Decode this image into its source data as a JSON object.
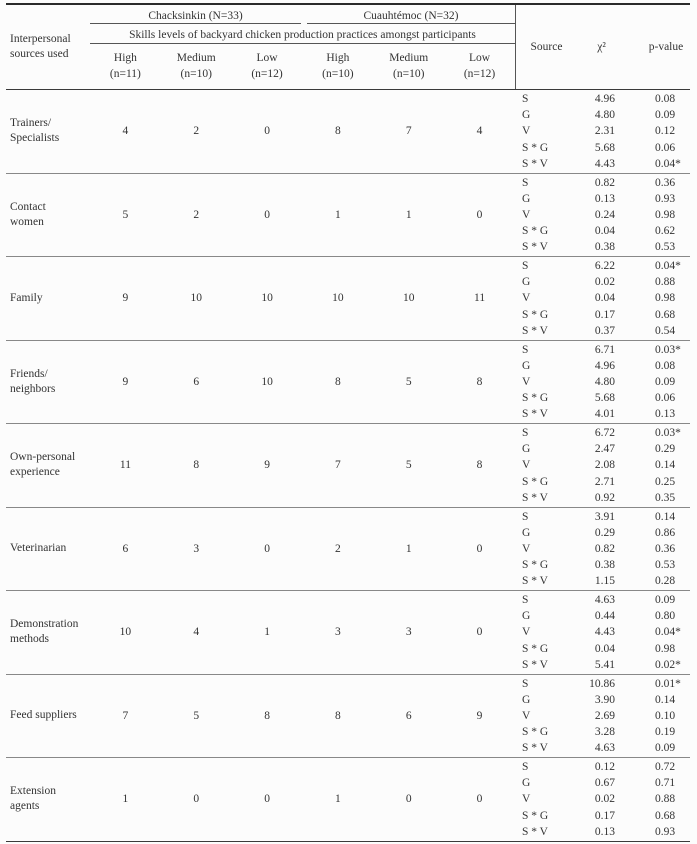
{
  "table": {
    "header": {
      "row_label": "Interpersonal sources used",
      "group1": "Chacksinkin (N=33)",
      "group2": "Cuauhtémoc (N=32)",
      "span_label": "Skills levels of backyard chicken production practices amongst participants",
      "level_cols": [
        {
          "level": "High",
          "n": "(n=11)"
        },
        {
          "level": "Medium",
          "n": "(n=10)"
        },
        {
          "level": "Low",
          "n": "(n=12)"
        },
        {
          "level": "High",
          "n": "(n=10)"
        },
        {
          "level": "Medium",
          "n": "(n=10)"
        },
        {
          "level": "Low",
          "n": "(n=12)"
        }
      ],
      "source": "Source",
      "chi2": "χ²",
      "pvalue": "p-value"
    },
    "rows": [
      {
        "label_lines": [
          "Trainers/",
          "Specialists"
        ],
        "counts": [
          "4",
          "2",
          "0",
          "8",
          "7",
          "4"
        ],
        "stats": [
          {
            "source": "S",
            "chi2": "4.96",
            "p": "0.08"
          },
          {
            "source": "G",
            "chi2": "4.80",
            "p": "0.09"
          },
          {
            "source": "V",
            "chi2": "2.31",
            "p": "0.12"
          },
          {
            "source": "S * G",
            "chi2": "5.68",
            "p": "0.06"
          },
          {
            "source": "S * V",
            "chi2": "4.43",
            "p": "0.04*"
          }
        ]
      },
      {
        "label_lines": [
          "Contact",
          "women"
        ],
        "counts": [
          "5",
          "2",
          "0",
          "1",
          "1",
          "0"
        ],
        "stats": [
          {
            "source": "S",
            "chi2": "0.82",
            "p": "0.36"
          },
          {
            "source": "G",
            "chi2": "0.13",
            "p": "0.93"
          },
          {
            "source": "V",
            "chi2": "0.24",
            "p": "0.98"
          },
          {
            "source": "S * G",
            "chi2": "0.04",
            "p": "0.62"
          },
          {
            "source": "S * V",
            "chi2": "0.38",
            "p": "0.53"
          }
        ]
      },
      {
        "label_lines": [
          "Family"
        ],
        "counts": [
          "9",
          "10",
          "10",
          "10",
          "10",
          "11"
        ],
        "stats": [
          {
            "source": "S",
            "chi2": "6.22",
            "p": "0.04*"
          },
          {
            "source": "G",
            "chi2": "0.02",
            "p": "0.88"
          },
          {
            "source": "V",
            "chi2": "0.04",
            "p": "0.98"
          },
          {
            "source": "S * G",
            "chi2": "0.17",
            "p": "0.68"
          },
          {
            "source": "S * V",
            "chi2": "0.37",
            "p": "0.54"
          }
        ]
      },
      {
        "label_lines": [
          "Friends/",
          "neighbors"
        ],
        "counts": [
          "9",
          "6",
          "10",
          "8",
          "5",
          "8"
        ],
        "stats": [
          {
            "source": "S",
            "chi2": "6.71",
            "p": "0.03*"
          },
          {
            "source": "G",
            "chi2": "4.96",
            "p": "0.08"
          },
          {
            "source": "V",
            "chi2": "4.80",
            "p": "0.09"
          },
          {
            "source": "S * G",
            "chi2": "5.68",
            "p": "0.06"
          },
          {
            "source": "S * V",
            "chi2": "4.01",
            "p": "0.13"
          }
        ]
      },
      {
        "label_lines": [
          "Own-personal",
          "experience"
        ],
        "counts": [
          "11",
          "8",
          "9",
          "7",
          "5",
          "8"
        ],
        "stats": [
          {
            "source": "S",
            "chi2": "6.72",
            "p": "0.03*"
          },
          {
            "source": "G",
            "chi2": "2.47",
            "p": "0.29"
          },
          {
            "source": "V",
            "chi2": "2.08",
            "p": "0.14"
          },
          {
            "source": "S * G",
            "chi2": "2.71",
            "p": "0.25"
          },
          {
            "source": "S * V",
            "chi2": "0.92",
            "p": "0.35"
          }
        ]
      },
      {
        "label_lines": [
          "Veterinarian"
        ],
        "counts": [
          "6",
          "3",
          "0",
          "2",
          "1",
          "0"
        ],
        "stats": [
          {
            "source": "S",
            "chi2": "3.91",
            "p": "0.14"
          },
          {
            "source": "G",
            "chi2": "0.29",
            "p": "0.86"
          },
          {
            "source": "V",
            "chi2": "0.82",
            "p": "0.36"
          },
          {
            "source": "S * G",
            "chi2": "0.38",
            "p": "0.53"
          },
          {
            "source": "S * V",
            "chi2": "1.15",
            "p": "0.28"
          }
        ]
      },
      {
        "label_lines": [
          "Demonstration",
          "methods"
        ],
        "counts": [
          "10",
          "4",
          "1",
          "3",
          "3",
          "0"
        ],
        "stats": [
          {
            "source": "S",
            "chi2": "4.63",
            "p": "0.09"
          },
          {
            "source": "G",
            "chi2": "0.44",
            "p": "0.80"
          },
          {
            "source": "V",
            "chi2": "4.43",
            "p": "0.04*"
          },
          {
            "source": "S * G",
            "chi2": "0.04",
            "p": "0.98"
          },
          {
            "source": "S * V",
            "chi2": "5.41",
            "p": "0.02*"
          }
        ]
      },
      {
        "label_lines": [
          "Feed suppliers"
        ],
        "counts": [
          "7",
          "5",
          "8",
          "8",
          "6",
          "9"
        ],
        "stats": [
          {
            "source": "S",
            "chi2": "10.86",
            "p": "0.01*"
          },
          {
            "source": "G",
            "chi2": "3.90",
            "p": "0.14"
          },
          {
            "source": "V",
            "chi2": "2.69",
            "p": "0.10"
          },
          {
            "source": "S * G",
            "chi2": "3.28",
            "p": "0.19"
          },
          {
            "source": "S * V",
            "chi2": "4.63",
            "p": "0.09"
          }
        ]
      },
      {
        "label_lines": [
          "Extension",
          "agents"
        ],
        "counts": [
          "1",
          "0",
          "0",
          "1",
          "0",
          "0"
        ],
        "stats": [
          {
            "source": "S",
            "chi2": "0.12",
            "p": "0.72"
          },
          {
            "source": "G",
            "chi2": "0.67",
            "p": "0.71"
          },
          {
            "source": "V",
            "chi2": "0.02",
            "p": "0.88"
          },
          {
            "source": "S * G",
            "chi2": "0.17",
            "p": "0.68"
          },
          {
            "source": "S * V",
            "chi2": "0.13",
            "p": "0.93"
          }
        ]
      }
    ]
  }
}
